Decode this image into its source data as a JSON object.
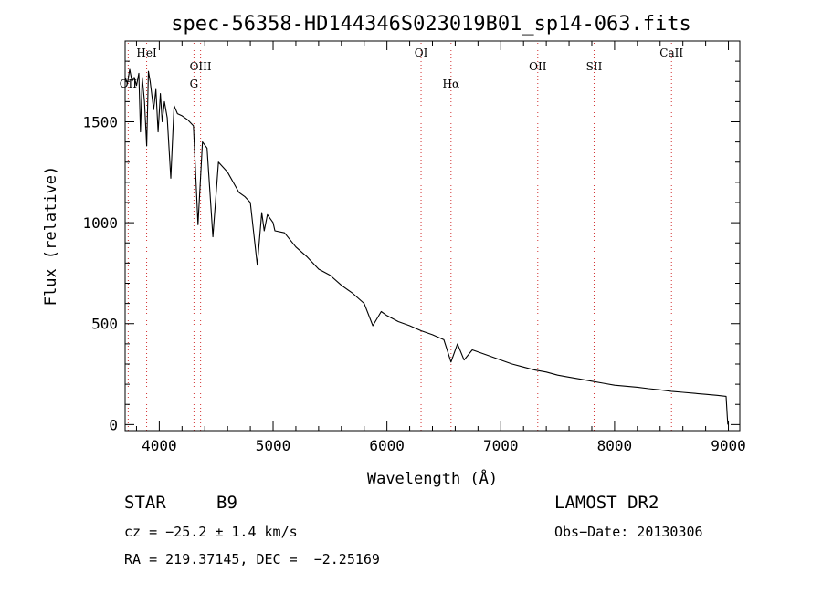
{
  "chart_data": {
    "type": "line",
    "title": "spec-56358-HD144346S023019B01_sp14-063.fits",
    "xlabel": "Wavelength (Å)",
    "ylabel": "Flux (relative)",
    "xlim": [
      3700,
      9100
    ],
    "ylim": [
      -30,
      1900
    ],
    "x_ticks": [
      4000,
      5000,
      6000,
      7000,
      8000,
      9000
    ],
    "y_ticks": [
      0,
      500,
      1000,
      1500
    ],
    "x_tick_labels": [
      "4000",
      "5000",
      "6000",
      "7000",
      "8000",
      "9000"
    ],
    "y_tick_labels": [
      "0",
      "500",
      "1000",
      "1500"
    ],
    "grid": false,
    "series": [
      {
        "x": [
          3700,
          3720,
          3740,
          3760,
          3780,
          3800,
          3820,
          3835,
          3850,
          3870,
          3889,
          3905,
          3920,
          3950,
          3970,
          3990,
          4010,
          4026,
          4045,
          4070,
          4101,
          4130,
          4160,
          4200,
          4250,
          4300,
          4340,
          4380,
          4420,
          4471,
          4520,
          4600,
          4700,
          4750,
          4800,
          4861,
          4900,
          4922,
          4950,
          5000,
          5016,
          5100,
          5200,
          5300,
          5400,
          5500,
          5600,
          5700,
          5800,
          5876,
          5950,
          6000,
          6100,
          6200,
          6300,
          6400,
          6500,
          6563,
          6620,
          6678,
          6750,
          6900,
          7000,
          7100,
          7200,
          7300,
          7400,
          7500,
          7600,
          7700,
          7800,
          7900,
          8000,
          8100,
          8200,
          8300,
          8400,
          8500,
          8600,
          8700,
          8800,
          8900,
          8980,
          8990,
          8995
        ],
        "y": [
          1720,
          1690,
          1760,
          1700,
          1720,
          1680,
          1740,
          1450,
          1720,
          1600,
          1380,
          1750,
          1700,
          1560,
          1660,
          1450,
          1640,
          1500,
          1600,
          1520,
          1220,
          1580,
          1540,
          1530,
          1510,
          1480,
          990,
          1400,
          1370,
          930,
          1300,
          1250,
          1150,
          1130,
          1100,
          790,
          1050,
          960,
          1040,
          1000,
          960,
          950,
          880,
          830,
          770,
          740,
          690,
          650,
          600,
          490,
          560,
          540,
          510,
          490,
          465,
          445,
          420,
          310,
          400,
          320,
          370,
          340,
          320,
          300,
          285,
          270,
          260,
          245,
          235,
          225,
          215,
          205,
          195,
          190,
          185,
          178,
          172,
          165,
          160,
          155,
          150,
          145,
          140,
          40,
          0
        ]
      }
    ],
    "lines": [
      {
        "label": "OII",
        "x": 3727,
        "row": 3
      },
      {
        "label": "HeI",
        "x": 3889,
        "row": 1
      },
      {
        "label": "OIII",
        "x": 4363,
        "row": 2
      },
      {
        "label": "G",
        "x": 4305,
        "row": 3
      },
      {
        "label": "OI",
        "x": 6300,
        "row": 1
      },
      {
        "label": "Hα",
        "x": 6563,
        "row": 3
      },
      {
        "label": "OII",
        "x": 7325,
        "row": 2
      },
      {
        "label": "SII",
        "x": 7820,
        "row": 2
      },
      {
        "label": "CaII",
        "x": 8500,
        "row": 1
      }
    ]
  },
  "info": {
    "object_class": "STAR",
    "subclass": "B9",
    "survey": "LAMOST DR2",
    "cz": "cz = −25.2 ± 1.4 km/s",
    "obs_date": "Obs−Date: 20130306",
    "coords": "RA = 219.37145, DEC =  −2.25169"
  }
}
